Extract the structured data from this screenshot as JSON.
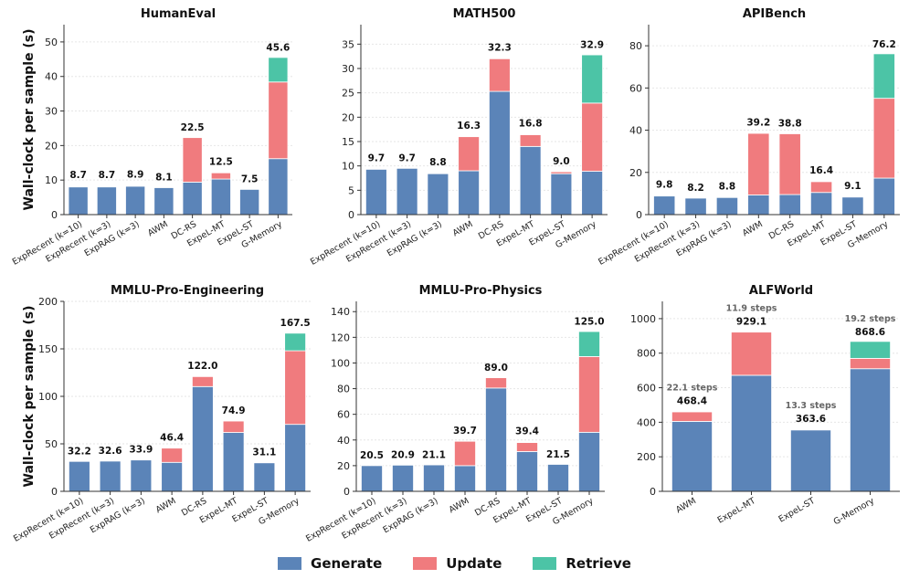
{
  "legend": [
    {
      "name": "Generate",
      "color": "#5b84b8"
    },
    {
      "name": "Update",
      "color": "#f07b7e"
    },
    {
      "name": "Retrieve",
      "color": "#4cc4a6"
    }
  ],
  "chart_data": [
    {
      "type": "bar",
      "stacked": true,
      "title": "HumanEval",
      "ylabel": "Wall-clock per sample (s)",
      "ylim": [
        0,
        55
      ],
      "yticks": [
        0,
        10,
        20,
        30,
        40,
        50
      ],
      "categories": [
        "ExpRecent (k=10)",
        "ExpRecent (k=3)",
        "ExpRAG (k=3)",
        "AWM",
        "DC-RS",
        "ExpeL-MT",
        "ExpeL-ST",
        "G-Memory"
      ],
      "series": [
        {
          "name": "Generate",
          "values": [
            8.0,
            8.0,
            8.2,
            7.8,
            9.4,
            10.3,
            7.3,
            16.2
          ]
        },
        {
          "name": "Update",
          "values": [
            0,
            0,
            0,
            0,
            12.9,
            1.8,
            0,
            22.2
          ]
        },
        {
          "name": "Retrieve",
          "values": [
            0,
            0,
            0,
            0,
            0,
            0,
            0,
            7.1
          ]
        }
      ],
      "labels": [
        "8.7",
        "8.7",
        "8.9",
        "8.1",
        "22.5",
        "12.5",
        "7.5",
        "45.6"
      ],
      "label_y": [
        8.7,
        8.7,
        8.9,
        8.1,
        22.5,
        12.5,
        7.5,
        45.6
      ]
    },
    {
      "type": "bar",
      "stacked": true,
      "title": "MATH500",
      "ylabel": "",
      "ylim": [
        0,
        39
      ],
      "yticks": [
        0,
        5,
        10,
        15,
        20,
        25,
        30,
        35
      ],
      "categories": [
        "ExpRecent (k=10)",
        "ExpRecent (k=3)",
        "ExpRAG (k=3)",
        "AWM",
        "DC-RS",
        "ExpeL-MT",
        "ExpeL-ST",
        "G-Memory"
      ],
      "series": [
        {
          "name": "Generate",
          "values": [
            9.3,
            9.5,
            8.4,
            9.0,
            25.3,
            14.0,
            8.4,
            8.9
          ]
        },
        {
          "name": "Update",
          "values": [
            0,
            0,
            0,
            7.0,
            6.7,
            2.4,
            0.4,
            14.0
          ]
        },
        {
          "name": "Retrieve",
          "values": [
            0,
            0,
            0,
            0,
            0,
            0,
            0,
            9.9
          ]
        }
      ],
      "labels": [
        "9.7",
        "9.7",
        "8.8",
        "16.3",
        "32.3",
        "16.8",
        "9.0",
        "32.9"
      ],
      "label_y": [
        9.7,
        9.7,
        8.8,
        16.3,
        32.3,
        16.8,
        9.0,
        32.9
      ]
    },
    {
      "type": "bar",
      "stacked": true,
      "title": "APIBench",
      "ylabel": "",
      "ylim": [
        0,
        90
      ],
      "yticks": [
        0,
        20,
        40,
        60,
        80
      ],
      "categories": [
        "ExpRecent (k=10)",
        "ExpRecent (k=3)",
        "ExpRAG (k=3)",
        "AWM",
        "DC-RS",
        "ExpeL-MT",
        "ExpeL-ST",
        "G-Memory"
      ],
      "series": [
        {
          "name": "Generate",
          "values": [
            8.8,
            7.8,
            8.1,
            9.3,
            9.5,
            10.5,
            8.3,
            17.3
          ]
        },
        {
          "name": "Update",
          "values": [
            0,
            0,
            0,
            29.2,
            28.8,
            5.1,
            0,
            37.8
          ]
        },
        {
          "name": "Retrieve",
          "values": [
            0,
            0,
            0,
            0,
            0,
            0,
            0,
            21.1
          ]
        }
      ],
      "labels": [
        "9.8",
        "8.2",
        "8.8",
        "39.2",
        "38.8",
        "16.4",
        "9.1",
        "76.2"
      ],
      "label_y": [
        9.8,
        8.2,
        8.8,
        39.2,
        38.8,
        16.4,
        9.1,
        76.2
      ]
    },
    {
      "type": "bar",
      "stacked": true,
      "title": "MMLU-Pro-Engineering",
      "ylabel": "Wall-clock per sample (s)",
      "ylim": [
        0,
        200
      ],
      "yticks": [
        0,
        50,
        100,
        150,
        200
      ],
      "categories": [
        "ExpRecent (k=10)",
        "ExpRecent (k=3)",
        "ExpRAG (k=3)",
        "AWM",
        "DC-RS",
        "ExpeL-MT",
        "ExpeL-ST",
        "G-Memory"
      ],
      "series": [
        {
          "name": "Generate",
          "values": [
            31.5,
            31.8,
            33.0,
            30.5,
            110.3,
            62.0,
            30.0,
            70.5
          ]
        },
        {
          "name": "Update",
          "values": [
            0,
            0,
            0,
            15.0,
            10.5,
            12.0,
            0,
            77.5
          ]
        },
        {
          "name": "Retrieve",
          "values": [
            0,
            0,
            0,
            0,
            0,
            0,
            0,
            18.5
          ]
        }
      ],
      "labels": [
        "32.2",
        "32.6",
        "33.9",
        "46.4",
        "122.0",
        "74.9",
        "31.1",
        "167.5"
      ],
      "label_y": [
        32.2,
        32.6,
        33.9,
        46.4,
        122.0,
        74.9,
        31.1,
        167.5
      ]
    },
    {
      "type": "bar",
      "stacked": true,
      "title": "MMLU-Pro-Physics",
      "ylabel": "",
      "ylim": [
        0,
        148
      ],
      "yticks": [
        0,
        20,
        40,
        60,
        80,
        100,
        120,
        140
      ],
      "categories": [
        "ExpRecent (k=10)",
        "ExpRecent (k=3)",
        "ExpRAG (k=3)",
        "AWM",
        "DC-RS",
        "ExpeL-MT",
        "ExpeL-ST",
        "G-Memory"
      ],
      "series": [
        {
          "name": "Generate",
          "values": [
            20.0,
            20.4,
            20.6,
            20.0,
            80.5,
            31.0,
            21.0,
            46.0
          ]
        },
        {
          "name": "Update",
          "values": [
            0,
            0,
            0,
            19.0,
            8.0,
            7.0,
            0,
            59.0
          ]
        },
        {
          "name": "Retrieve",
          "values": [
            0,
            0,
            0,
            0,
            0,
            0,
            0,
            19.5
          ]
        }
      ],
      "labels": [
        "20.5",
        "20.9",
        "21.1",
        "39.7",
        "89.0",
        "39.4",
        "21.5",
        "125.0"
      ],
      "label_y": [
        20.5,
        20.9,
        21.1,
        39.7,
        89.0,
        39.4,
        21.5,
        125.0
      ]
    },
    {
      "type": "bar",
      "stacked": true,
      "title": "ALFWorld",
      "ylabel": "",
      "ylim": [
        0,
        1100
      ],
      "yticks": [
        0,
        200,
        400,
        600,
        800,
        1000
      ],
      "categories": [
        "AWM",
        "ExpeL-MT",
        "ExpeL-ST",
        "G-Memory"
      ],
      "series": [
        {
          "name": "Generate",
          "values": [
            405,
            672,
            355,
            710
          ]
        },
        {
          "name": "Update",
          "values": [
            55,
            250,
            0,
            60
          ]
        },
        {
          "name": "Retrieve",
          "values": [
            0,
            0,
            0,
            98
          ]
        }
      ],
      "labels": [
        "468.4",
        "929.1",
        "363.6",
        "868.6"
      ],
      "label_y": [
        468.4,
        929.1,
        363.6,
        868.6
      ],
      "annotations": [
        "22.1 steps",
        "11.9 steps",
        "13.3 steps",
        "19.2 steps"
      ]
    }
  ]
}
